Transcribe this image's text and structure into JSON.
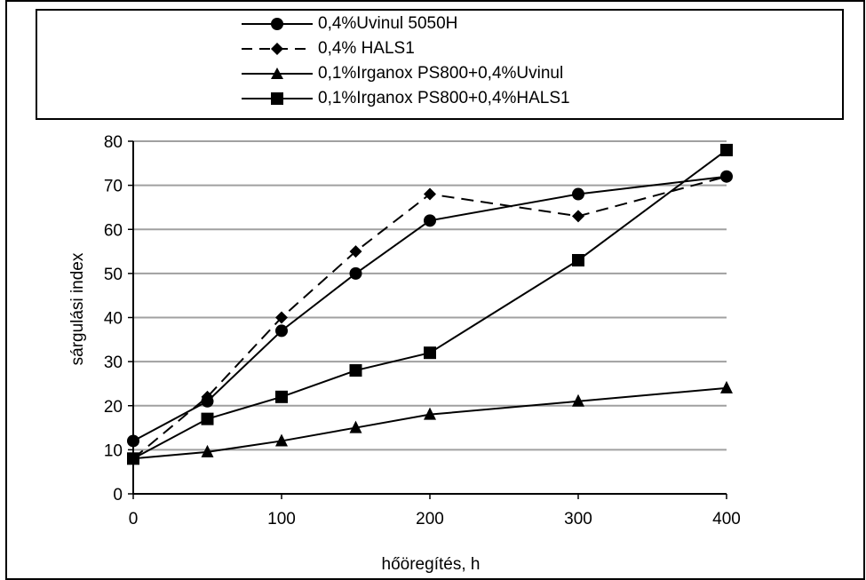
{
  "chart_data": {
    "type": "line",
    "x": [
      0,
      50,
      100,
      150,
      200,
      300,
      400
    ],
    "xlabel": "hőöregítés, h",
    "ylabel": "sárgulási index",
    "xlim": [
      0,
      400
    ],
    "ylim": [
      0,
      80
    ],
    "x_ticks": [
      "0",
      "100",
      "200",
      "300",
      "400"
    ],
    "y_ticks": [
      "0",
      "10",
      "20",
      "30",
      "40",
      "50",
      "60",
      "70",
      "80"
    ],
    "grid": "horizontal",
    "legend_position": "top",
    "series": [
      {
        "name": "0,4%Uvinul 5050H",
        "marker": "circle",
        "dash": "solid",
        "values": [
          12,
          21,
          37,
          50,
          62,
          68,
          72
        ]
      },
      {
        "name": "0,4% HALS1",
        "marker": "diamond",
        "dash": "dashed",
        "values": [
          8,
          22,
          40,
          55,
          68,
          63,
          72
        ]
      },
      {
        "name": "0,1%Irganox PS800+0,4%Uvinul",
        "marker": "triangle",
        "dash": "solid",
        "values": [
          8,
          9.5,
          12,
          15,
          18,
          21,
          24
        ]
      },
      {
        "name": "0,1%Irganox PS800+0,4%HALS1",
        "marker": "square",
        "dash": "solid",
        "values": [
          8,
          17,
          22,
          28,
          32,
          53,
          78
        ]
      }
    ],
    "colors": {
      "line": "#000000",
      "grid": "#a0a0a0",
      "background": "#ffffff"
    }
  }
}
